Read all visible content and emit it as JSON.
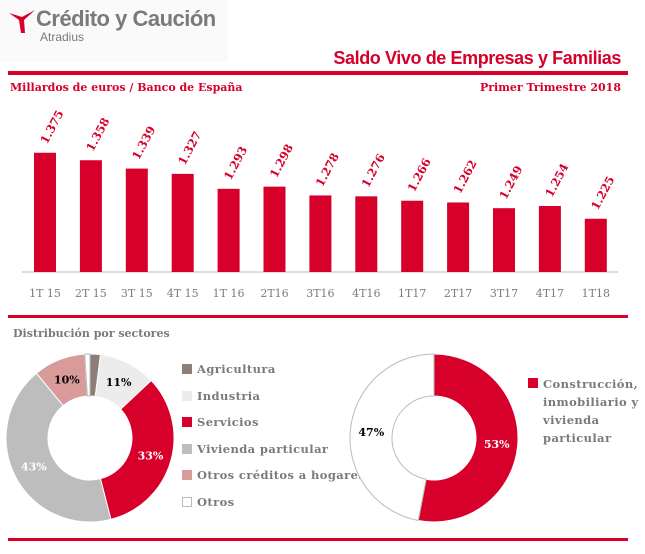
{
  "header": {
    "brand": "Crédito y Caución",
    "brand_sub": "Atradius",
    "title": "Saldo Vivo de Empresas y Familias",
    "source": "Millardos de euros / Banco de España",
    "period": "Primer Trimestre 2018"
  },
  "colors": {
    "accent": "#d6002a",
    "agricultura": "#8c7f78",
    "industria": "#ececec",
    "servicios": "#d6002a",
    "vivienda": "#bdbdbd",
    "otros_creditos": "#d99a9a",
    "otros": "#ffffff"
  },
  "chart_data": [
    {
      "type": "bar",
      "categories": [
        "1T 15",
        "2T 15",
        "3T 15",
        "4T 15",
        "1T 16",
        "2T16",
        "3T16",
        "4T16",
        "1T17",
        "2T17",
        "3T17",
        "4T17",
        "1T18"
      ],
      "values": [
        1375,
        1358,
        1339,
        1327,
        1293,
        1298,
        1278,
        1276,
        1266,
        1262,
        1249,
        1254,
        1225
      ],
      "data_labels": [
        "1.375",
        "1.358",
        "1.339",
        "1.327",
        "1.293",
        "1.298",
        "1.278",
        "1.276",
        "1.266",
        "1.262",
        "1.249",
        "1.254",
        "1.225"
      ],
      "title": "Saldo Vivo de Empresas y Familias",
      "ylabel": "Millardos de euros / Banco de España",
      "grid": false
    },
    {
      "type": "pie",
      "donut": true,
      "title": "Distribución por sectores",
      "legend": "right",
      "slices": [
        {
          "name": "Agricultura",
          "value": 2,
          "label": ""
        },
        {
          "name": "Industria",
          "value": 11,
          "label": "11%"
        },
        {
          "name": "Servicios",
          "value": 33,
          "label": "33%"
        },
        {
          "name": "Vivienda particular",
          "value": 43,
          "label": "43%"
        },
        {
          "name": "Otros créditos a hogares",
          "value": 10,
          "label": "10%"
        },
        {
          "name": "Otros",
          "value": 1,
          "label": ""
        }
      ]
    },
    {
      "type": "pie",
      "donut": true,
      "legend": "right",
      "slices": [
        {
          "name": "Construcción, inmobiliario y vivienda particular",
          "value": 53,
          "label": "53%"
        },
        {
          "name": "",
          "value": 47,
          "label": "47%"
        }
      ],
      "legend_lines": [
        "Construcción,",
        "inmobiliario y",
        "vivienda",
        "particular"
      ]
    }
  ]
}
